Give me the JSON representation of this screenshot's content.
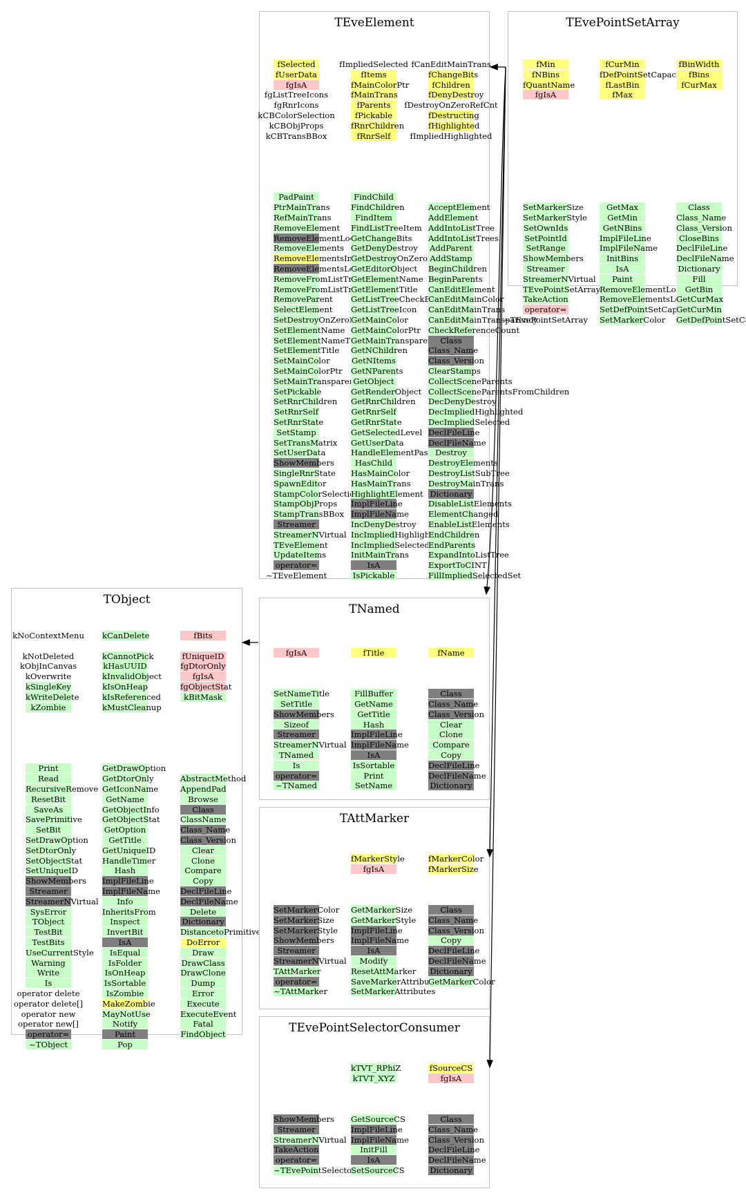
{
  "classes": [
    {
      "name": "TEvePointSetArray",
      "cols": [
        [
          "fMin:y",
          "fNBins:y",
          "fQuantName:y",
          "fgIsA:p",
          "",
          "",
          "",
          "",
          "",
          "",
          "",
          "",
          "",
          "",
          "SetMarkerSize:g",
          "SetMarkerStyle:g",
          "SetOwnIds:g",
          "SetPointId:g",
          "SetRange:g",
          "ShowMembers:g",
          "Streamer:g",
          "StreamerNVirtual:g",
          "TEvePointSetArray:g",
          "TakeAction:g",
          "operator=:p",
          "~TEvePointSetArray:n"
        ],
        [
          "fCurMin:y",
          "fDefPointSetCapacity:y",
          "fLastBin:y",
          "fMax:y",
          "",
          "",
          "",
          "",
          "",
          "",
          "",
          "",
          "",
          "",
          "GetMax:g",
          "GetMin:g",
          "GetNBins:g",
          "ImplFileLine:g",
          "ImplFileName:g",
          "InitBins:g",
          "IsA:g",
          "Paint:g",
          "RemoveElementLocal:g",
          "RemoveElementsLocal:g",
          "SetDefPointSetCapacity:g",
          "SetMarkerColor:g"
        ],
        [
          "fBinWidth:y",
          "fBins:y",
          "fCurMax:y",
          "",
          "",
          "",
          "",
          "",
          "",
          "",
          "",
          "",
          "",
          "",
          "Class:g",
          "Class_Name:g",
          "Class_Version:g",
          "CloseBins:g",
          "DeclFileLine:g",
          "DeclFileName:g",
          "Dictionary:g",
          "Fill:g",
          "GetBin:g",
          "GetCurMax:g",
          "GetCurMin:g",
          "GetDefPointSetCapacity:g"
        ]
      ]
    },
    {
      "name": "TEveElement",
      "cols": [
        [
          "fSelected:y",
          "fUserData:y",
          "fgIsA:p",
          "fgListTreeIcons:n",
          "fgRnrIcons:n",
          "kCBColorSelection:n",
          "kCBObjProps:n",
          "kCBTransBBox:n",
          "",
          "",
          "",
          "",
          "",
          "PadPaint:g",
          "PtrMainTrans:g",
          "RefMainTrans:g",
          "RemoveElement:g",
          "RemoveElementLocal:d",
          "RemoveElements:g",
          "RemoveElementsInternal:y",
          "RemoveElementsLocal:d",
          "RemoveFromListTree:g",
          "RemoveFromListTrees:g",
          "RemoveParent:g",
          "SelectElement:g",
          "SetDestroyOnZeroRefCnt:g",
          "SetElementName:g",
          "SetElementNameTitle:g",
          "SetElementTitle:g",
          "SetMainColor:g",
          "SetMainColorPtr:g",
          "SetMainTransparency:g",
          "SetPickable:g",
          "SetRnrChildren:g",
          "SetRnrSelf:g",
          "SetRnrState:g",
          "SetStamp:g",
          "SetTransMatrix:g",
          "SetUserData:g",
          "ShowMembers:d",
          "SingleRnrState:g",
          "SpawnEditor:g",
          "StampColorSelection:g",
          "StampObjProps:g",
          "StampTransBBox:g",
          "Streamer:d",
          "StreamerNVirtual:g",
          "TEveElement:g",
          "UpdateItems:g",
          "operator=:d",
          "~TEveElement:n"
        ],
        [
          "fImpliedSelected:n",
          "fItems:y",
          "fMainColorPtr:y",
          "fMainTrans:y",
          "fParents:y",
          "fPickable:y",
          "fRnrChildren:y",
          "fRnrSelf:y",
          "",
          "",
          "",
          "",
          "",
          "FindChild:g",
          "FindChildren:g",
          "FindItem:g",
          "FindListTreeItem:g",
          "GetChangeBits:g",
          "GetDenyDestroy:g",
          "GetDestroyOnZeroRefCnt:g",
          "GetEditorObject:g",
          "GetElementName:g",
          "GetElementTitle:g",
          "GetListTreeCheckBoxIcon:g",
          "GetListTreeIcon:g",
          "GetMainColor:g",
          "GetMainColorPtr:g",
          "GetMainTransparency:g",
          "GetNChildren:g",
          "GetNItems:g",
          "GetNParents:g",
          "GetObject:g",
          "GetRenderObject:g",
          "GetRnrChildren:g",
          "GetRnrSelf:g",
          "GetRnrState:g",
          "GetSelectedLevel:g",
          "GetUserData:g",
          "HandleElementPaste:g",
          "HasChild:g",
          "HasMainColor:g",
          "HasMainTrans:g",
          "HighlightElement:g",
          "ImplFileLine:d",
          "ImplFileName:d",
          "IncDenyDestroy:g",
          "IncImpliedHighlighted:g",
          "IncImpliedSelected:g",
          "InitMainTrans:g",
          "IsA:d",
          "IsPickable:g"
        ],
        [
          "fCanEditMainTrans:n",
          "fChangeBits:y",
          "fChildren:y",
          "fDenyDestroy:y",
          "fDestroyOnZeroRefCnt:n",
          "fDestructing:y",
          "fHighlighted:y",
          "fImpliedHighlighted:n",
          "",
          "",
          "",
          "",
          "",
          "",
          "AcceptElement:g",
          "AddElement:g",
          "AddIntoListTree:g",
          "AddIntoListTrees:g",
          "AddParent:g",
          "AddStamp:g",
          "BeginChildren:g",
          "BeginParents:g",
          "CanEditElement:g",
          "CanEditMainColor:g",
          "CanEditMainTrans:g",
          "CanEditMainTransparency:g",
          "CheckReferenceCount:g",
          "Class:d",
          "Class_Name:d",
          "Class_Version:d",
          "ClearStamps:g",
          "CollectSceneParents:g",
          "CollectSceneParentsFromChildren:g",
          "DecDenyDestroy:g",
          "DecImpliedHighlighted:g",
          "DecImpliedSelected:g",
          "DeclFileLine:d",
          "DeclFileName:d",
          "Destroy:g",
          "DestroyElements:g",
          "DestroyListSubTree:g",
          "DestroyMainTrans:g",
          "Dictionary:d",
          "DisableListElements:g",
          "ElementChanged:g",
          "EnableListElements:g",
          "EndChildren:g",
          "EndParents:g",
          "ExpandIntoListTree:g",
          "ExportToCINT:g",
          "FillImpliedSelectedSet:g"
        ]
      ]
    },
    {
      "name": "TObject",
      "cols": [
        [
          "kNoContextMenu:n",
          "",
          "kNotDeleted:n",
          "kObjInCanvas:n",
          "kOverwrite:n",
          "kSingleKey:g",
          "kWriteDelete:g",
          "kZombie:g",
          "",
          "",
          "",
          "",
          "",
          "Print:g",
          "Read:g",
          "RecursiveRemove:g",
          "ResetBit:g",
          "SaveAs:g",
          "SavePrimitive:g",
          "SetBit:g",
          "SetDrawOption:g",
          "SetDtorOnly:g",
          "SetObjectStat:g",
          "SetUniqueID:g",
          "ShowMembers:d",
          "Streamer:d",
          "StreamerNVirtual:d",
          "SysError:g",
          "TObject:g",
          "TestBit:g",
          "TestBits:g",
          "UseCurrentStyle:g",
          "Warning:g",
          "Write:g",
          "Is:g",
          "operator delete:n",
          "operator delete[]:n",
          "operator new:n",
          "operator new[]:n",
          "operator=:d",
          "~TObject:g"
        ],
        [
          "kCanDelete:g",
          "",
          "kCannotPick:g",
          "kHasUUID:g",
          "kInvalidObject:g",
          "kIsOnHeap:g",
          "kIsReferenced:g",
          "kMustCleanup:g",
          "",
          "",
          "",
          "",
          "",
          "GetDrawOption:g",
          "GetDtorOnly:g",
          "GetIconName:g",
          "GetName:g",
          "GetObjectInfo:g",
          "GetObjectStat:g",
          "GetOption:g",
          "GetTitle:g",
          "GetUniqueID:g",
          "HandleTimer:g",
          "Hash:g",
          "ImplFileLine:d",
          "ImplFileName:d",
          "Info:g",
          "InheritsFrom:g",
          "Inspect:g",
          "InvertBit:g",
          "IsA:d",
          "IsEqual:g",
          "IsFolder:g",
          "IsOnHeap:g",
          "IsSortable:g",
          "IsZombie:g",
          "MakeZombie:y",
          "MayNotUse:g",
          "Notify:g",
          "Paint:d",
          "Pop:g"
        ],
        [
          "fBits:p",
          "",
          "fUniqueID:p",
          "fgDtorOnly:p",
          "fgIsA:p",
          "fgObjectStat:p",
          "kBitMask:g",
          "",
          "",
          "",
          "",
          "",
          "",
          "",
          "AbstractMethod:g",
          "AppendPad:g",
          "Browse:g",
          "Class:d",
          "ClassName:g",
          "Class_Name:d",
          "Class_Version:d",
          "Clear:g",
          "Clone:g",
          "Compare:g",
          "Copy:g",
          "DeclFileLine:d",
          "DeclFileName:d",
          "Delete:g",
          "Dictionary:d",
          "DistancetoPrimitive:g",
          "DoError:y",
          "Draw:g",
          "DrawClass:g",
          "DrawClone:g",
          "Dump:g",
          "Error:g",
          "Execute:g",
          "ExecuteEvent:g",
          "Fatal:g",
          "FindObject:g"
        ]
      ]
    },
    {
      "name": "TNamed",
      "cols": [
        [
          "fgIsA:p",
          "",
          "",
          "",
          "SetNameTitle:g",
          "SetTitle:g",
          "ShowMembers:d",
          "Sizeof:g",
          "Streamer:d",
          "StreamerNVirtual:g",
          "TNamed:g",
          "Is:g",
          "operator=:d",
          "~TNamed:g"
        ],
        [
          "fTitle:y",
          "",
          "",
          "",
          "FillBuffer:g",
          "GetName:g",
          "GetTitle:g",
          "Hash:g",
          "ImplFileLine:d",
          "ImplFileName:d",
          "IsA:d",
          "IsSortable:g",
          "Print:g",
          "SetName:g"
        ],
        [
          "fName:y",
          "",
          "",
          "",
          "Class:d",
          "Class_Name:d",
          "Class_Version:d",
          "Clear:g",
          "Clone:g",
          "Compare:g",
          "Copy:g",
          "DeclFileLine:d",
          "DeclFileName:d",
          "Dictionary:d"
        ]
      ]
    },
    {
      "name": "TAttMarker",
      "cols": [
        [
          "",
          "",
          "",
          "",
          "",
          "SetMarkerColor:d",
          "SetMarkerSize:d",
          "SetMarkerStyle:d",
          "ShowMembers:d",
          "Streamer:d",
          "StreamerNVirtual:d",
          "TAttMarker:g",
          "operator=:d",
          "~TAttMarker:g"
        ],
        [
          "fMarkerStyle:y",
          "fgIsA:p",
          "",
          "",
          "",
          "GetMarkerSize:g",
          "GetMarkerStyle:g",
          "ImplFileLine:d",
          "ImplFileName:d",
          "IsA:d",
          "Modify:g",
          "ResetAttMarker:g",
          "SaveMarkerAttributes:g",
          "SetMarkerAttributes:g"
        ],
        [
          "fMarkerColor:y",
          "fMarkerSize:y",
          "",
          "",
          "",
          "Class:d",
          "Class_Name:d",
          "Class_Version:d",
          "Copy:g",
          "DeclFileLine:d",
          "DeclFileName:d",
          "Dictionary:d",
          "GetMarkerColor:g"
        ]
      ]
    },
    {
      "name": "TEvePointSelectorConsumer",
      "cols": [
        [
          "",
          "",
          "",
          "",
          "",
          "ShowMembers:d",
          "Streamer:d",
          "StreamerNVirtual:g",
          "TakeAction:d",
          "operator=:d",
          "~TEvePointSelectorConsumer:g"
        ],
        [
          "kTVT_RPhiZ:g",
          "kTVT_XYZ:g",
          "",
          "",
          "",
          "GetSourceCS:g",
          "ImplFileLine:d",
          "ImplFileName:d",
          "InitFill:g",
          "IsA:d",
          "SetSourceCS:g"
        ],
        [
          "fSourceCS:y",
          "fgIsA:p",
          "",
          "",
          "",
          "Class:d",
          "Class_Name:d",
          "Class_Version:d",
          "DeclFileLine:d",
          "DeclFileName:d",
          "Dictionary:d"
        ]
      ]
    }
  ]
}
